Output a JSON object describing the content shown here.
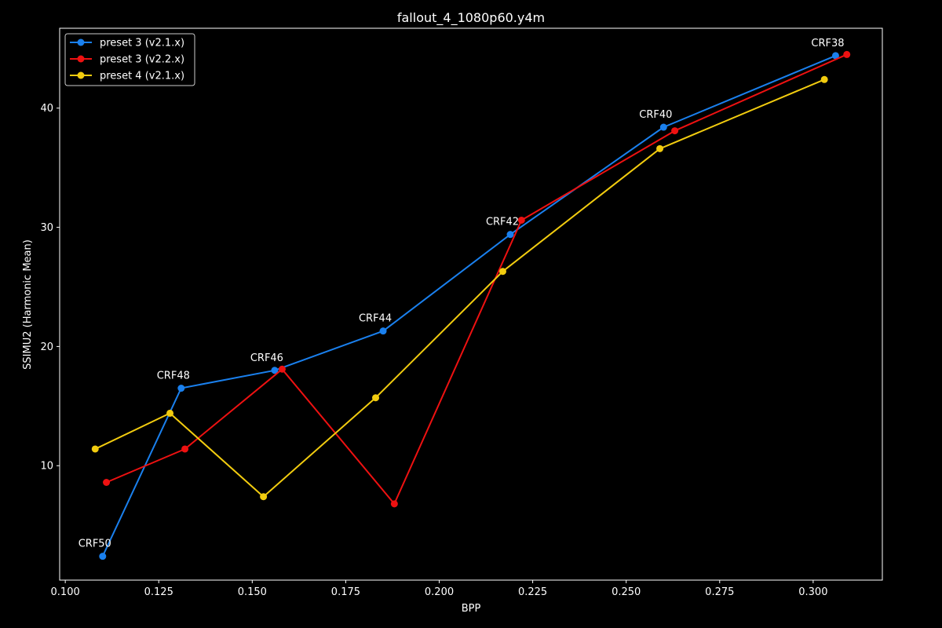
{
  "chart_data": {
    "type": "line",
    "title": "fallout_4_1080p60.y4m",
    "xlabel": "BPP",
    "ylabel": "SSIMU2 (Harmonic Mean)",
    "xlim": [
      0.0985,
      0.3185
    ],
    "ylim": [
      0.4,
      46.7
    ],
    "xticks": [
      0.1,
      0.125,
      0.15,
      0.175,
      0.2,
      0.225,
      0.25,
      0.275,
      0.3
    ],
    "xtick_labels": [
      "0.100",
      "0.125",
      "0.150",
      "0.175",
      "0.200",
      "0.225",
      "0.250",
      "0.275",
      "0.300"
    ],
    "yticks": [
      10,
      20,
      30,
      40
    ],
    "ytick_labels": [
      "10",
      "20",
      "30",
      "40"
    ],
    "grid": false,
    "legend_position": "top-left",
    "series": [
      {
        "name": "preset 3 (v2.1.x)",
        "color": "#1a80ee",
        "x": [
          0.11,
          0.131,
          0.156,
          0.185,
          0.219,
          0.26,
          0.306
        ],
        "y": [
          2.4,
          16.5,
          18.0,
          21.3,
          29.4,
          38.4,
          44.4
        ]
      },
      {
        "name": "preset 3 (v2.2.x)",
        "color": "#ee1111",
        "x": [
          0.111,
          0.132,
          0.158,
          0.188,
          0.222,
          0.263,
          0.309
        ],
        "y": [
          8.6,
          11.4,
          18.1,
          6.8,
          30.6,
          38.1,
          44.5
        ]
      },
      {
        "name": "preset 4 (v2.1.x)",
        "color": "#f2cc0f",
        "x": [
          0.108,
          0.128,
          0.153,
          0.183,
          0.217,
          0.259,
          0.303
        ],
        "y": [
          11.4,
          14.4,
          7.4,
          15.7,
          26.3,
          36.6,
          42.4
        ]
      }
    ],
    "annotations": [
      {
        "text": "CRF50",
        "x": 0.11,
        "y": 2.4
      },
      {
        "text": "CRF48",
        "x": 0.131,
        "y": 16.5
      },
      {
        "text": "CRF46",
        "x": 0.156,
        "y": 18.0
      },
      {
        "text": "CRF44",
        "x": 0.185,
        "y": 21.3
      },
      {
        "text": "CRF42",
        "x": 0.219,
        "y": 29.4
      },
      {
        "text": "CRF40",
        "x": 0.26,
        "y": 38.4
      },
      {
        "text": "CRF38",
        "x": 0.306,
        "y": 44.4
      }
    ]
  }
}
